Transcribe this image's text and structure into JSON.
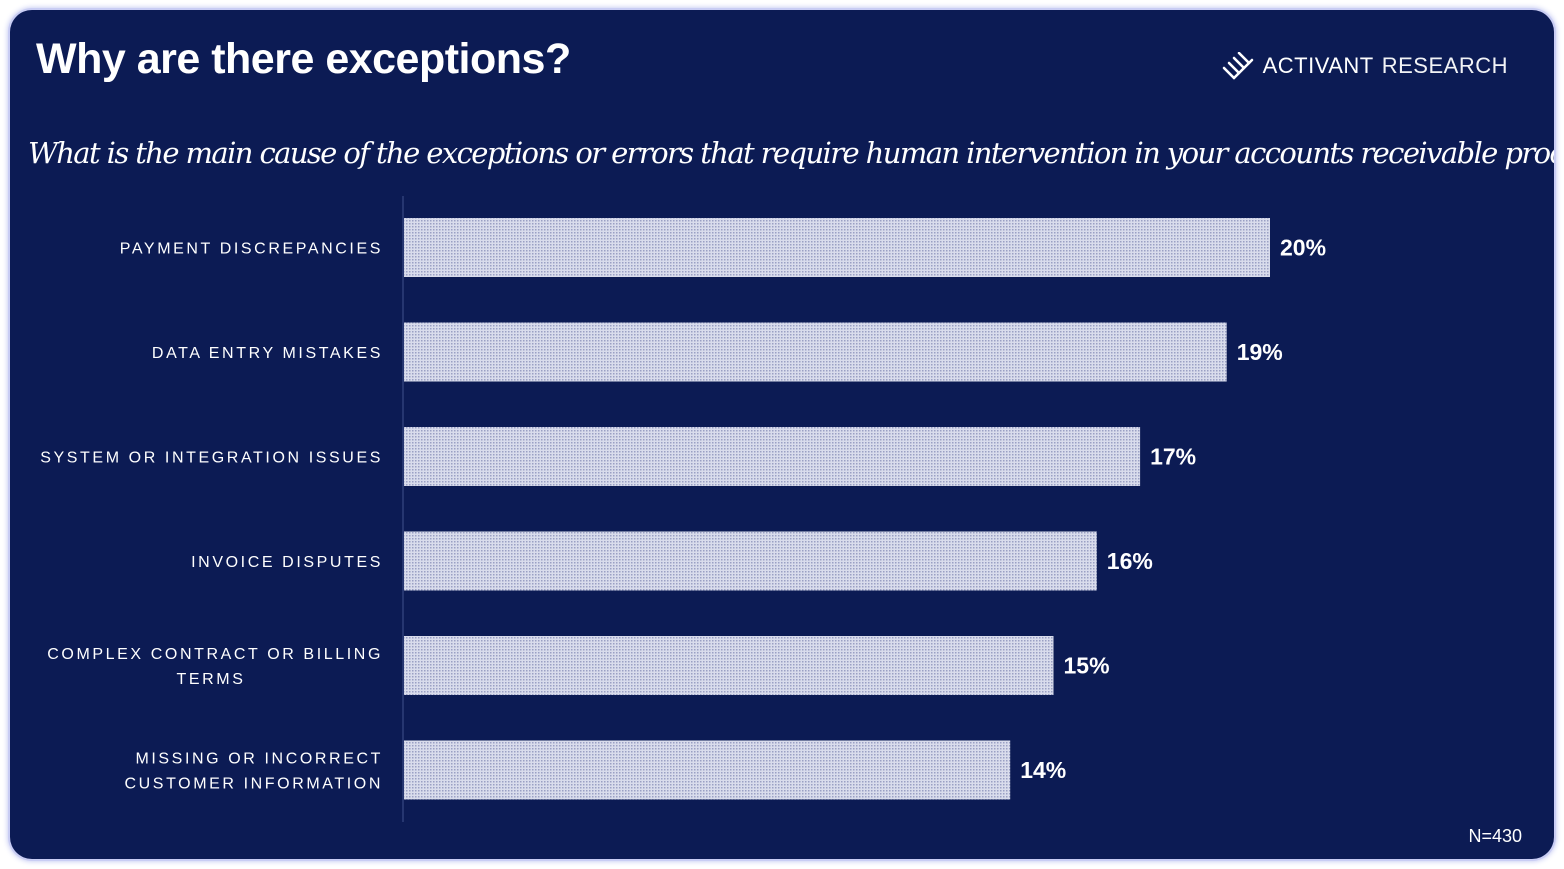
{
  "title": "Why are there exceptions?",
  "brand": {
    "name_strong": "ACTIVANT",
    "name_light": "RESEARCH",
    "icon": "activant-logo-icon"
  },
  "question": "What is the main cause of the exceptions or errors that require human intervention in your accounts receivable process?",
  "footnote": "N=430",
  "colors": {
    "background": "#0c1b54",
    "bar_fill": "#d9dcec",
    "bar_dot": "#9aa0c4",
    "text": "#ffffff",
    "axis": "#2f3f7a"
  },
  "chart_data": {
    "type": "bar",
    "orientation": "horizontal",
    "categories": [
      [
        "PAYMENT DISCREPANCIES"
      ],
      [
        "DATA ENTRY MISTAKES"
      ],
      [
        "SYSTEM OR INTEGRATION ISSUES"
      ],
      [
        "INVOICE DISPUTES"
      ],
      [
        "COMPLEX CONTRACT OR BILLING",
        "TERMS"
      ],
      [
        "MISSING OR INCORRECT",
        "CUSTOMER INFORMATION"
      ]
    ],
    "values": [
      20,
      19,
      17,
      16,
      15,
      14
    ],
    "value_labels": [
      "20%",
      "19%",
      "17%",
      "16%",
      "15%",
      "14%"
    ],
    "unit": "%",
    "xlim": [
      0,
      26
    ],
    "grid": false,
    "legend": "none"
  }
}
